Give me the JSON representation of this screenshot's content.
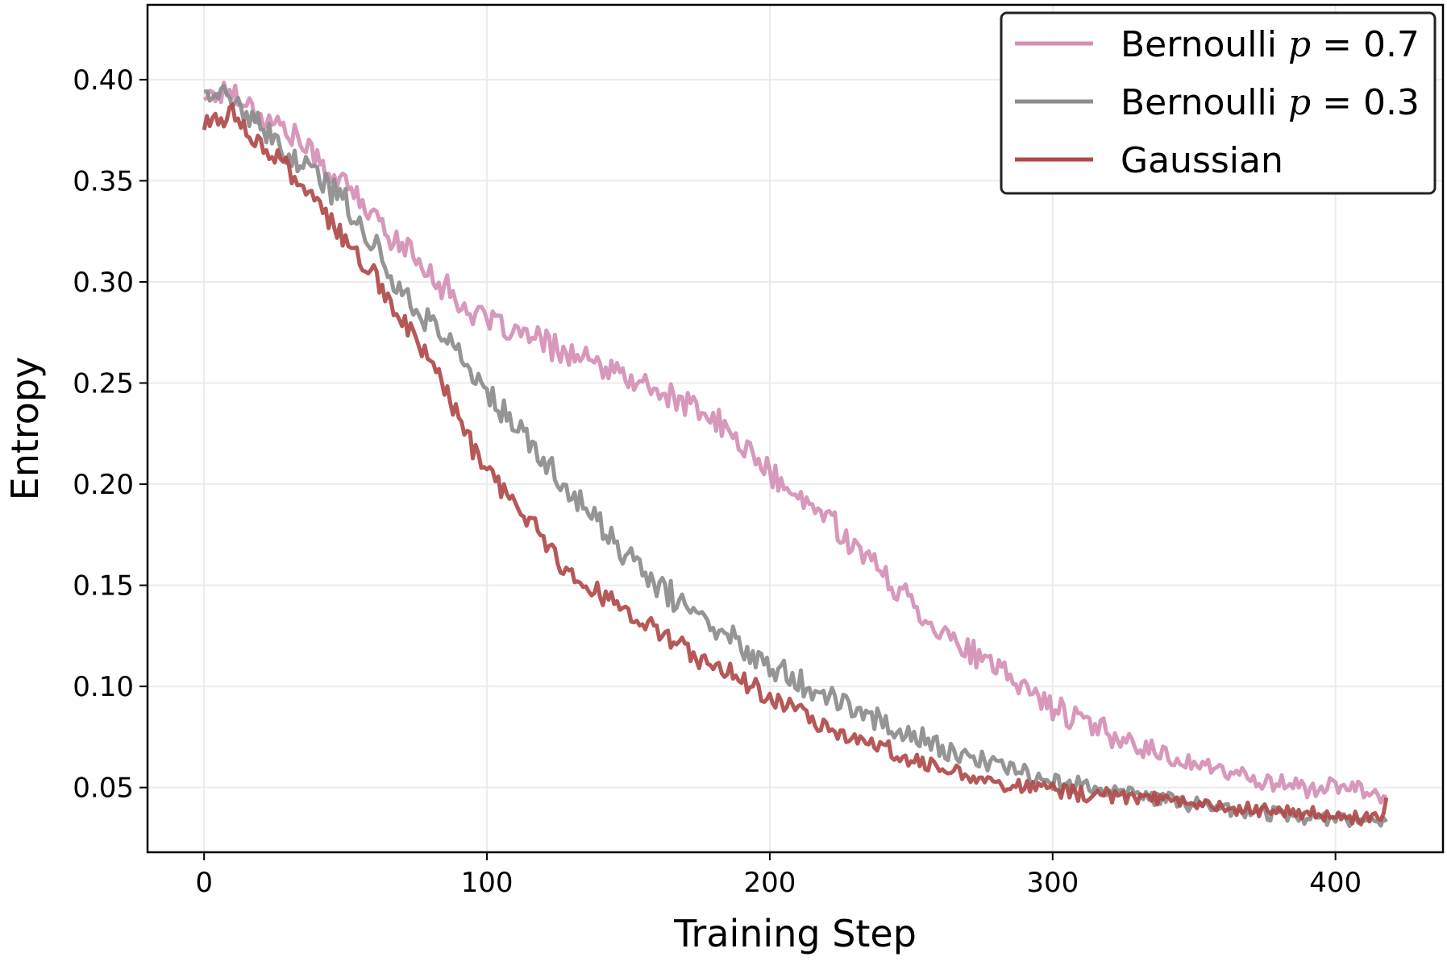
{
  "chart_data": {
    "type": "line",
    "title": "",
    "xlabel": "Training Step",
    "ylabel": "Entropy",
    "xlim": [
      -20,
      438
    ],
    "ylim": [
      0.018,
      0.437
    ],
    "x_ticks": [
      0,
      100,
      200,
      300,
      400
    ],
    "x_tick_labels": [
      "0",
      "100",
      "200",
      "300",
      "400"
    ],
    "y_ticks": [
      0.05,
      0.1,
      0.15,
      0.2,
      0.25,
      0.3,
      0.35,
      0.4
    ],
    "y_tick_labels": [
      "0.05",
      "0.10",
      "0.15",
      "0.20",
      "0.25",
      "0.30",
      "0.35",
      "0.40"
    ],
    "grid": true,
    "legend_position": "top-right",
    "legend_entries": [
      {
        "prefix": "Bernoulli ",
        "var": "p",
        "suffix": " = 0.7"
      },
      {
        "prefix": "Bernoulli ",
        "var": "p",
        "suffix": " = 0.3"
      },
      {
        "prefix": "Gaussian",
        "var": "",
        "suffix": ""
      }
    ],
    "series": [
      {
        "name": "Bernoulli p = 0.7",
        "color": "#d48fb6",
        "x": [
          0,
          10,
          20,
          30,
          40,
          50,
          60,
          70,
          80,
          90,
          100,
          110,
          120,
          130,
          140,
          150,
          160,
          170,
          180,
          190,
          200,
          210,
          220,
          230,
          240,
          250,
          260,
          270,
          280,
          290,
          300,
          310,
          320,
          330,
          340,
          350,
          360,
          370,
          380,
          390,
          400,
          410,
          418
        ],
        "y": [
          0.392,
          0.395,
          0.382,
          0.375,
          0.36,
          0.348,
          0.332,
          0.318,
          0.305,
          0.29,
          0.28,
          0.275,
          0.27,
          0.264,
          0.258,
          0.252,
          0.246,
          0.24,
          0.232,
          0.22,
          0.205,
          0.192,
          0.185,
          0.17,
          0.155,
          0.142,
          0.128,
          0.118,
          0.108,
          0.1,
          0.09,
          0.083,
          0.077,
          0.071,
          0.066,
          0.062,
          0.058,
          0.055,
          0.052,
          0.05,
          0.05,
          0.049,
          0.045
        ],
        "noise": 0.006
      },
      {
        "name": "Bernoulli p = 0.3",
        "color": "#8c8c8c",
        "x": [
          0,
          10,
          20,
          30,
          40,
          50,
          60,
          70,
          80,
          90,
          100,
          110,
          120,
          130,
          140,
          150,
          160,
          170,
          180,
          190,
          200,
          210,
          220,
          230,
          240,
          250,
          260,
          270,
          280,
          290,
          300,
          310,
          320,
          330,
          340,
          350,
          360,
          370,
          380,
          390,
          400,
          410,
          418
        ],
        "y": [
          0.395,
          0.39,
          0.375,
          0.362,
          0.352,
          0.34,
          0.318,
          0.295,
          0.28,
          0.265,
          0.245,
          0.228,
          0.212,
          0.195,
          0.18,
          0.163,
          0.15,
          0.14,
          0.13,
          0.12,
          0.112,
          0.104,
          0.096,
          0.089,
          0.082,
          0.076,
          0.07,
          0.065,
          0.061,
          0.057,
          0.054,
          0.051,
          0.048,
          0.046,
          0.044,
          0.042,
          0.04,
          0.038,
          0.037,
          0.036,
          0.035,
          0.034,
          0.033
        ],
        "noise": 0.006
      },
      {
        "name": "Gaussian",
        "color": "#b04a4a",
        "x": [
          0,
          10,
          20,
          30,
          40,
          50,
          60,
          70,
          80,
          90,
          100,
          110,
          120,
          130,
          140,
          150,
          160,
          170,
          180,
          190,
          200,
          210,
          220,
          230,
          240,
          250,
          260,
          270,
          280,
          290,
          300,
          310,
          320,
          330,
          340,
          350,
          360,
          370,
          380,
          390,
          400,
          410,
          416,
          418
        ],
        "y": [
          0.378,
          0.383,
          0.368,
          0.355,
          0.338,
          0.32,
          0.302,
          0.282,
          0.262,
          0.232,
          0.205,
          0.19,
          0.172,
          0.156,
          0.146,
          0.137,
          0.127,
          0.118,
          0.11,
          0.103,
          0.096,
          0.088,
          0.081,
          0.075,
          0.069,
          0.064,
          0.06,
          0.056,
          0.053,
          0.051,
          0.049,
          0.047,
          0.046,
          0.045,
          0.044,
          0.042,
          0.04,
          0.039,
          0.038,
          0.037,
          0.036,
          0.035,
          0.035,
          0.045
        ],
        "noise": 0.005
      }
    ]
  }
}
